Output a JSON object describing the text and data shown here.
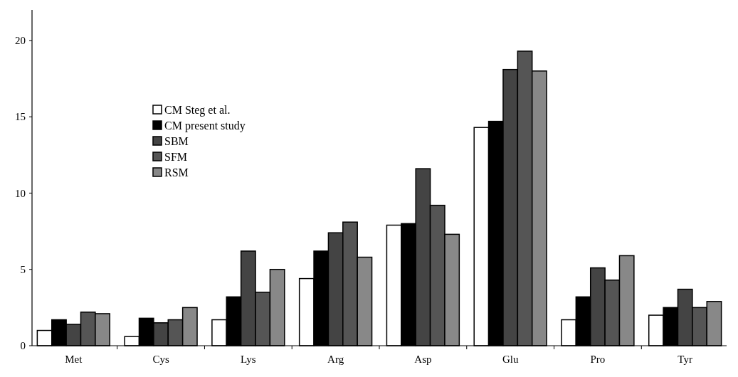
{
  "chart_data": {
    "type": "bar",
    "categories": [
      "Met",
      "Cys",
      "Lys",
      "Arg",
      "Asp",
      "Glu",
      "Pro",
      "Tyr"
    ],
    "series": [
      {
        "name": "CM Steg et al.",
        "color": "#ffffff",
        "values": [
          1.0,
          0.6,
          1.7,
          4.4,
          7.9,
          14.3,
          1.7,
          2.0
        ]
      },
      {
        "name": "CM present study",
        "color": "#000000",
        "values": [
          1.7,
          1.8,
          3.2,
          6.2,
          8.0,
          14.7,
          3.2,
          2.5
        ]
      },
      {
        "name": "SBM",
        "color": "#444444",
        "values": [
          1.4,
          1.5,
          6.2,
          7.4,
          11.6,
          18.1,
          5.1,
          3.7
        ]
      },
      {
        "name": "SFM",
        "color": "#555555",
        "values": [
          2.2,
          1.7,
          3.5,
          8.1,
          9.2,
          19.3,
          4.3,
          2.5
        ]
      },
      {
        "name": "RSM",
        "color": "#888888",
        "values": [
          2.1,
          2.5,
          5.0,
          5.8,
          7.3,
          18.0,
          5.9,
          2.9
        ]
      }
    ],
    "ylim": [
      0,
      22
    ],
    "yticks": [
      0,
      5,
      10,
      15,
      20
    ],
    "grid": false,
    "legend": "left"
  }
}
